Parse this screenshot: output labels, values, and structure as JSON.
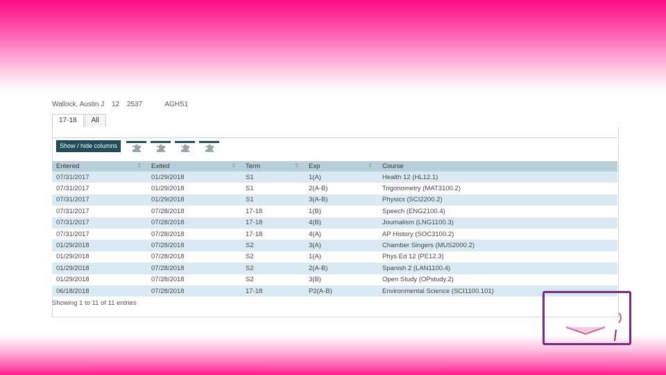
{
  "colors": {
    "banner_pink": "#ff0a84",
    "header_row": "#b8ced9",
    "stripe_row": "#d9eaf3",
    "button_dark": "#1f4e5a",
    "frame_purple": "#7a2a7a"
  },
  "student": {
    "name": "Wallock, Austin J",
    "grade": "12",
    "id": "2537",
    "school": "AGHS1"
  },
  "tabs": [
    "17-18",
    "All"
  ],
  "toolbar": {
    "show_hide_label": "Show / hide columns",
    "icons": [
      "puzzle-icon",
      "puzzle-icon",
      "puzzle-icon",
      "puzzle-icon"
    ]
  },
  "table": {
    "headers": [
      "Entered",
      "Exited",
      "Term",
      "Exp",
      "Course"
    ],
    "rows": [
      [
        "07/31/2017",
        "01/29/2018",
        "S1",
        "1(A)",
        "Health 12 (HL12.1)"
      ],
      [
        "07/31/2017",
        "01/29/2018",
        "S1",
        "2(A-B)",
        "Trigonometry (MAT3100.2)"
      ],
      [
        "07/31/2017",
        "01/29/2018",
        "S1",
        "3(A-B)",
        "Physics (SCI2200.2)"
      ],
      [
        "07/31/2017",
        "07/28/2018",
        "17-18",
        "1(B)",
        "Speech (ENG2100.4)"
      ],
      [
        "07/31/2017",
        "07/28/2018",
        "17-18",
        "4(B)",
        "Journalism (LNG1100.3)"
      ],
      [
        "07/31/2017",
        "07/28/2018",
        "17-18",
        "4(A)",
        "AP History (SOC3100.2)"
      ],
      [
        "01/29/2018",
        "07/28/2018",
        "S2",
        "3(A)",
        "Chamber Singers (MUS2000.2)"
      ],
      [
        "01/29/2018",
        "07/28/2018",
        "S2",
        "1(A)",
        "Phys Ed 12 (PE12.3)"
      ],
      [
        "01/29/2018",
        "07/28/2018",
        "S2",
        "2(A-B)",
        "Spanish 2 (LAN1100.4)"
      ],
      [
        "01/29/2018",
        "07/28/2018",
        "S2",
        "3(B)",
        "Open Study (OPstudy.2)"
      ],
      [
        "06/18/2018",
        "07/28/2018",
        "17-18",
        "P2(A-B)",
        "Environmental Science (SCI1100.101)"
      ]
    ]
  },
  "footer": {
    "info": "Showing 1 to 11 of 11 entries"
  }
}
